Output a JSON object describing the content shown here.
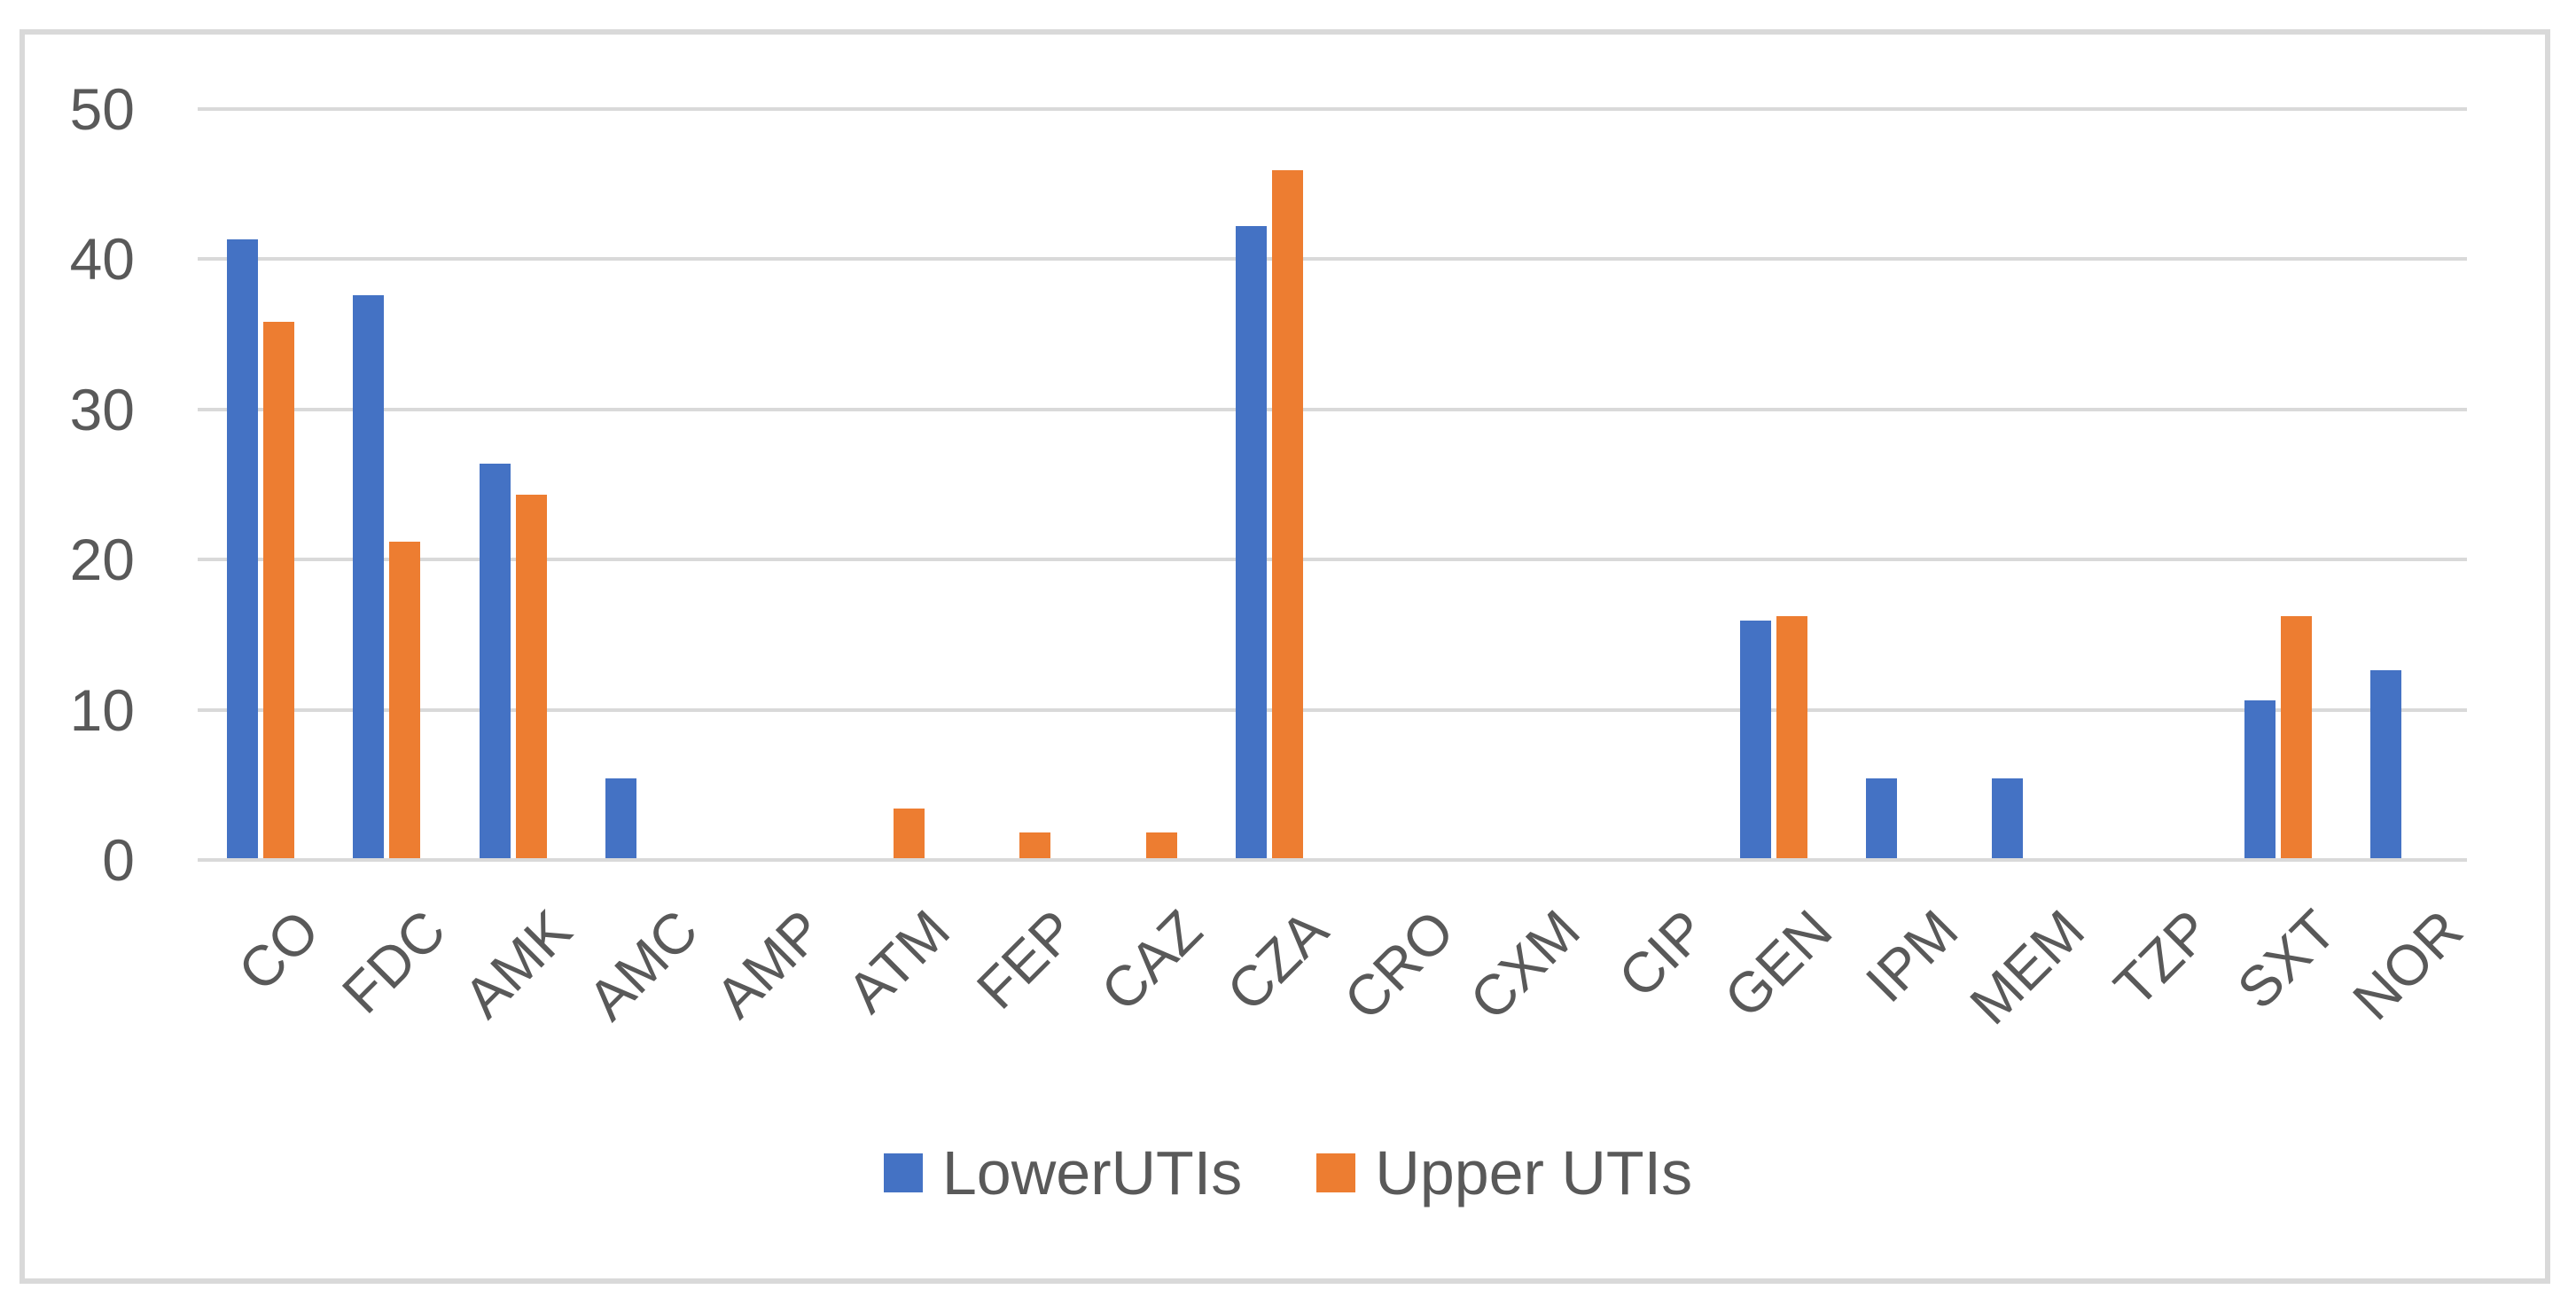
{
  "chart_data": {
    "type": "bar",
    "title": "",
    "xlabel": "",
    "ylabel": "",
    "categories": [
      "CO",
      "FDC",
      "AMK",
      "AMC",
      "AMP",
      "ATM",
      "FEP",
      "CAZ",
      "CZA",
      "CRO",
      "CXM",
      "CIP",
      "GEN",
      "IPM",
      "MEM",
      "TZP",
      "SXT",
      "NOR"
    ],
    "series": [
      {
        "name": "LowerUTIs",
        "color": "#4472C4",
        "values": [
          41.2,
          37.5,
          26.3,
          5.3,
          0,
          0,
          0,
          0,
          42.1,
          0,
          0,
          0,
          15.8,
          5.3,
          5.3,
          0,
          10.5,
          12.5
        ]
      },
      {
        "name": "Upper UTIs",
        "color": "#ED7D31",
        "values": [
          35.7,
          21.1,
          24.2,
          0,
          0,
          3.3,
          1.7,
          1.7,
          45.8,
          0,
          0,
          0,
          16.1,
          0,
          0,
          0,
          16.1,
          0
        ]
      }
    ],
    "ylim": [
      0,
      50
    ],
    "yticks": [
      0,
      10,
      20,
      30,
      40,
      50
    ],
    "grid": true,
    "gridline_color": "#D9D9D9",
    "axis_text_color": "#595959",
    "legend_position": "bottom"
  },
  "legend": {
    "items": [
      {
        "label": "LowerUTIs",
        "color": "#4472C4"
      },
      {
        "label": "Upper UTIs",
        "color": "#ED7D31"
      }
    ]
  },
  "colors": {
    "background": "#FFFFFF",
    "frame_border": "#D9D9D9",
    "series_blue": "#4472C4",
    "series_orange": "#ED7D31"
  }
}
